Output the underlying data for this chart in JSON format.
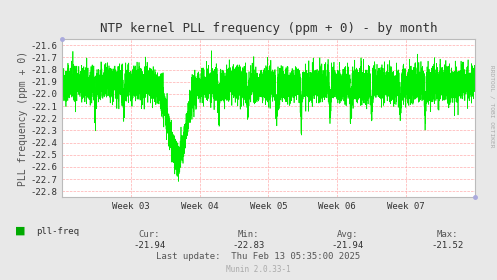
{
  "title": "NTP kernel PLL frequency (ppm + 0) - by month",
  "ylabel": "PLL frequency (ppm + 0)",
  "fig_bg_color": "#E8E8E8",
  "plot_bg_color": "#FFFFFF",
  "grid_color": "#FF9999",
  "line_color": "#00EE00",
  "ylim": [
    -22.85,
    -21.55
  ],
  "yticks": [
    -21.6,
    -21.7,
    -21.8,
    -21.9,
    -22.0,
    -22.1,
    -22.2,
    -22.3,
    -22.4,
    -22.5,
    -22.6,
    -22.7,
    -22.8
  ],
  "xtick_labels": [
    "Week 03",
    "Week 04",
    "Week 05",
    "Week 06",
    "Week 07"
  ],
  "cur": "-21.94",
  "min": "-22.83",
  "avg": "-21.94",
  "max": "-21.52",
  "last_update": "Thu Feb 13 05:35:00 2025",
  "munin_version": "Munin 2.0.33-1",
  "rrdtool_label": "RRDTOOL / TOBI OETIKER",
  "legend_label": "pll-freq",
  "legend_color": "#00AA00",
  "title_fontsize": 9,
  "axis_label_fontsize": 7,
  "tick_fontsize": 6.5,
  "footer_fontsize": 6.5,
  "small_fontsize": 5.5
}
